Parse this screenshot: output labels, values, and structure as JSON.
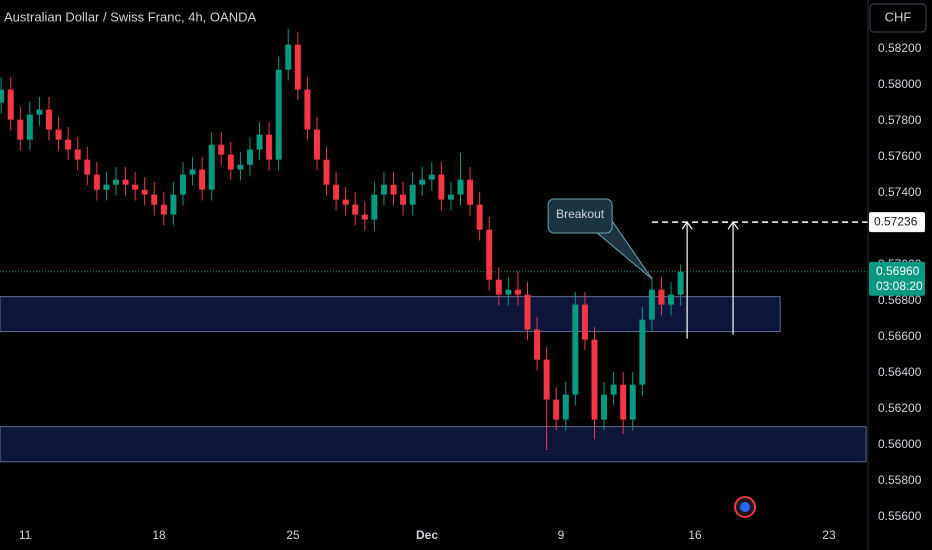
{
  "header": {
    "title": "Australian Dollar / Swiss Franc, 4h, OANDA",
    "currency": "CHF"
  },
  "chart_data": {
    "type": "candlestick",
    "x": [
      9.75,
      10.25,
      10.75,
      11.25,
      11.75,
      12.25,
      12.75,
      13.25,
      13.75,
      14.25,
      14.75,
      15.25,
      15.75,
      16.25,
      16.75,
      17.25,
      17.75,
      18.25,
      18.75,
      19.25,
      19.75,
      20.25,
      20.75,
      21.25,
      21.75,
      22.25,
      22.75,
      23.25,
      23.75,
      24.25,
      24.75,
      25.25,
      25.75,
      26.25,
      26.75,
      27.25,
      27.75,
      28.25,
      28.75,
      29.25,
      29.75,
      30.25,
      30.75,
      31.25,
      31.75,
      32.25,
      32.75,
      33.25,
      33.75,
      34.25,
      34.75,
      35.25,
      35.75,
      36.25,
      36.75,
      37.25,
      37.75,
      38.25,
      38.75,
      39.25,
      39.75,
      40.25,
      40.75,
      41.25,
      41.75,
      42.25,
      42.75,
      43.25,
      43.75,
      44.25,
      44.75,
      45.25
    ],
    "open": [
      0.579,
      0.57972,
      0.57805,
      0.57694,
      0.57833,
      0.57861,
      0.5775,
      0.57694,
      0.57639,
      0.57583,
      0.575,
      0.57416,
      0.57444,
      0.57472,
      0.57444,
      0.57416,
      0.57389,
      0.57333,
      0.57278,
      0.57389,
      0.575,
      0.57528,
      0.57416,
      0.57666,
      0.57611,
      0.57528,
      0.57555,
      0.57639,
      0.57722,
      0.57583,
      0.58083,
      0.58222,
      0.57972,
      0.5775,
      0.57583,
      0.57444,
      0.57361,
      0.57333,
      0.57278,
      0.5725,
      0.57389,
      0.57444,
      0.57389,
      0.57333,
      0.57444,
      0.57472,
      0.575,
      0.57361,
      0.57389,
      0.57472,
      0.57333,
      0.57194,
      0.56916,
      0.56833,
      0.56861,
      0.56833,
      0.56639,
      0.56472,
      0.5625,
      0.56139,
      0.56278,
      0.56778,
      0.56583,
      0.56139,
      0.56278,
      0.56333,
      0.56139,
      0.56333,
      0.56694,
      0.56861,
      0.56778,
      0.56833
    ],
    "high": [
      0.58042,
      0.58042,
      0.57875,
      0.57903,
      0.57931,
      0.57931,
      0.5782,
      0.57764,
      0.57709,
      0.57653,
      0.5757,
      0.57514,
      0.57542,
      0.57542,
      0.57514,
      0.57486,
      0.57459,
      0.57403,
      0.57459,
      0.5757,
      0.57598,
      0.57598,
      0.57736,
      0.57736,
      0.57681,
      0.57625,
      0.57709,
      0.57792,
      0.57792,
      0.58153,
      0.5831,
      0.58292,
      0.58042,
      0.5782,
      0.57653,
      0.57514,
      0.57431,
      0.57403,
      0.57348,
      0.57459,
      0.57514,
      0.57514,
      0.57459,
      0.57514,
      0.57542,
      0.5757,
      0.5757,
      0.57459,
      0.5762,
      0.57542,
      0.57403,
      0.57264,
      0.56986,
      0.56931,
      0.5696,
      0.56903,
      0.56709,
      0.56542,
      0.5632,
      0.56348,
      0.56848,
      0.56848,
      0.56653,
      0.56348,
      0.56403,
      0.56403,
      0.56403,
      0.56764,
      0.56931,
      0.56931,
      0.56903,
      0.57
    ],
    "low": [
      0.5784,
      0.57745,
      0.57634,
      0.57634,
      0.57773,
      0.5769,
      0.57634,
      0.57579,
      0.57523,
      0.5744,
      0.57356,
      0.57356,
      0.57384,
      0.57384,
      0.57356,
      0.57329,
      0.57273,
      0.57218,
      0.57218,
      0.57329,
      0.5744,
      0.57356,
      0.57356,
      0.57551,
      0.57468,
      0.57468,
      0.57495,
      0.57579,
      0.57523,
      0.57523,
      0.58023,
      0.57912,
      0.5769,
      0.57523,
      0.57384,
      0.57301,
      0.57273,
      0.57218,
      0.5719,
      0.5719,
      0.57329,
      0.57329,
      0.57273,
      0.57273,
      0.57384,
      0.57412,
      0.57301,
      0.57301,
      0.57329,
      0.57273,
      0.57134,
      0.56856,
      0.56773,
      0.56773,
      0.56773,
      0.56579,
      0.56412,
      0.5597,
      0.56079,
      0.56079,
      0.56218,
      0.56523,
      0.5603,
      0.56079,
      0.56218,
      0.5606,
      0.56079,
      0.56273,
      0.56634,
      0.56718,
      0.56718,
      0.56773
    ],
    "close": [
      0.57972,
      0.57805,
      0.57694,
      0.57833,
      0.57861,
      0.5775,
      0.57694,
      0.57639,
      0.57583,
      0.575,
      0.57416,
      0.57444,
      0.57472,
      0.57444,
      0.57416,
      0.57389,
      0.57333,
      0.57278,
      0.57389,
      0.575,
      0.57528,
      0.57416,
      0.57666,
      0.57611,
      0.57528,
      0.57555,
      0.57639,
      0.57722,
      0.57583,
      0.58083,
      0.58222,
      0.57972,
      0.5775,
      0.57583,
      0.57444,
      0.57361,
      0.57333,
      0.57278,
      0.5725,
      0.57389,
      0.57444,
      0.57389,
      0.57333,
      0.57444,
      0.57472,
      0.575,
      0.57361,
      0.57389,
      0.57472,
      0.57333,
      0.57194,
      0.56916,
      0.56833,
      0.56861,
      0.56833,
      0.56639,
      0.56472,
      0.5625,
      0.56139,
      0.56278,
      0.56778,
      0.56583,
      0.56139,
      0.56278,
      0.56333,
      0.56139,
      0.56333,
      0.56694,
      0.56861,
      0.56778,
      0.56833,
      0.5696
    ],
    "up_color": "#089981",
    "down_color": "#f23645",
    "xlim": [
      9.69,
      55.04
    ],
    "xticks": [
      11,
      18,
      25,
      {
        "value": 32,
        "label": "Dec"
      },
      {
        "value": 39,
        "label": "9"
      },
      {
        "value": 46,
        "label": "16"
      },
      {
        "value": 53,
        "label": "23"
      }
    ],
    "ylim": [
      0.5557,
      0.5847
    ],
    "yticks": [
      {
        "value": 0.556,
        "label": "0.55600"
      },
      {
        "value": 0.558,
        "label": "0.55800"
      },
      {
        "value": 0.56,
        "label": "0.56000"
      },
      {
        "value": 0.562,
        "label": "0.56200"
      },
      {
        "value": 0.564,
        "label": "0.56400"
      },
      {
        "value": 0.566,
        "label": "0.56600"
      },
      {
        "value": 0.568,
        "label": "0.56800"
      },
      {
        "value": 0.57,
        "label": "0.57000"
      },
      {
        "value": 0.572,
        "label": "0.57200"
      },
      {
        "value": 0.574,
        "label": "0.57400"
      },
      {
        "value": 0.576,
        "label": "0.57600"
      },
      {
        "value": 0.578,
        "label": "0.57800"
      },
      {
        "value": 0.58,
        "label": "0.58000"
      },
      {
        "value": 0.582,
        "label": "0.58200"
      }
    ],
    "grid": false,
    "zones": [
      {
        "x": [
          9.69,
          50.45
        ],
        "y": [
          0.56628,
          0.56822
        ]
      },
      {
        "x": [
          9.69,
          54.94
        ],
        "y": [
          0.55905,
          0.561
        ]
      }
    ],
    "target": {
      "value": 0.57236,
      "label": "0.57236",
      "x0": 43.76
    },
    "arrows": [
      {
        "x": 45.59,
        "from": 0.56589,
        "to": 0.57236
      },
      {
        "x": 47.99,
        "from": 0.56611,
        "to": 0.57236
      }
    ],
    "last_price": {
      "value": 0.5696,
      "label": "0.56960",
      "countdown": "03:08:20"
    },
    "callout": {
      "text": "Breakout",
      "x": 43.76,
      "y": 0.5692
    }
  }
}
